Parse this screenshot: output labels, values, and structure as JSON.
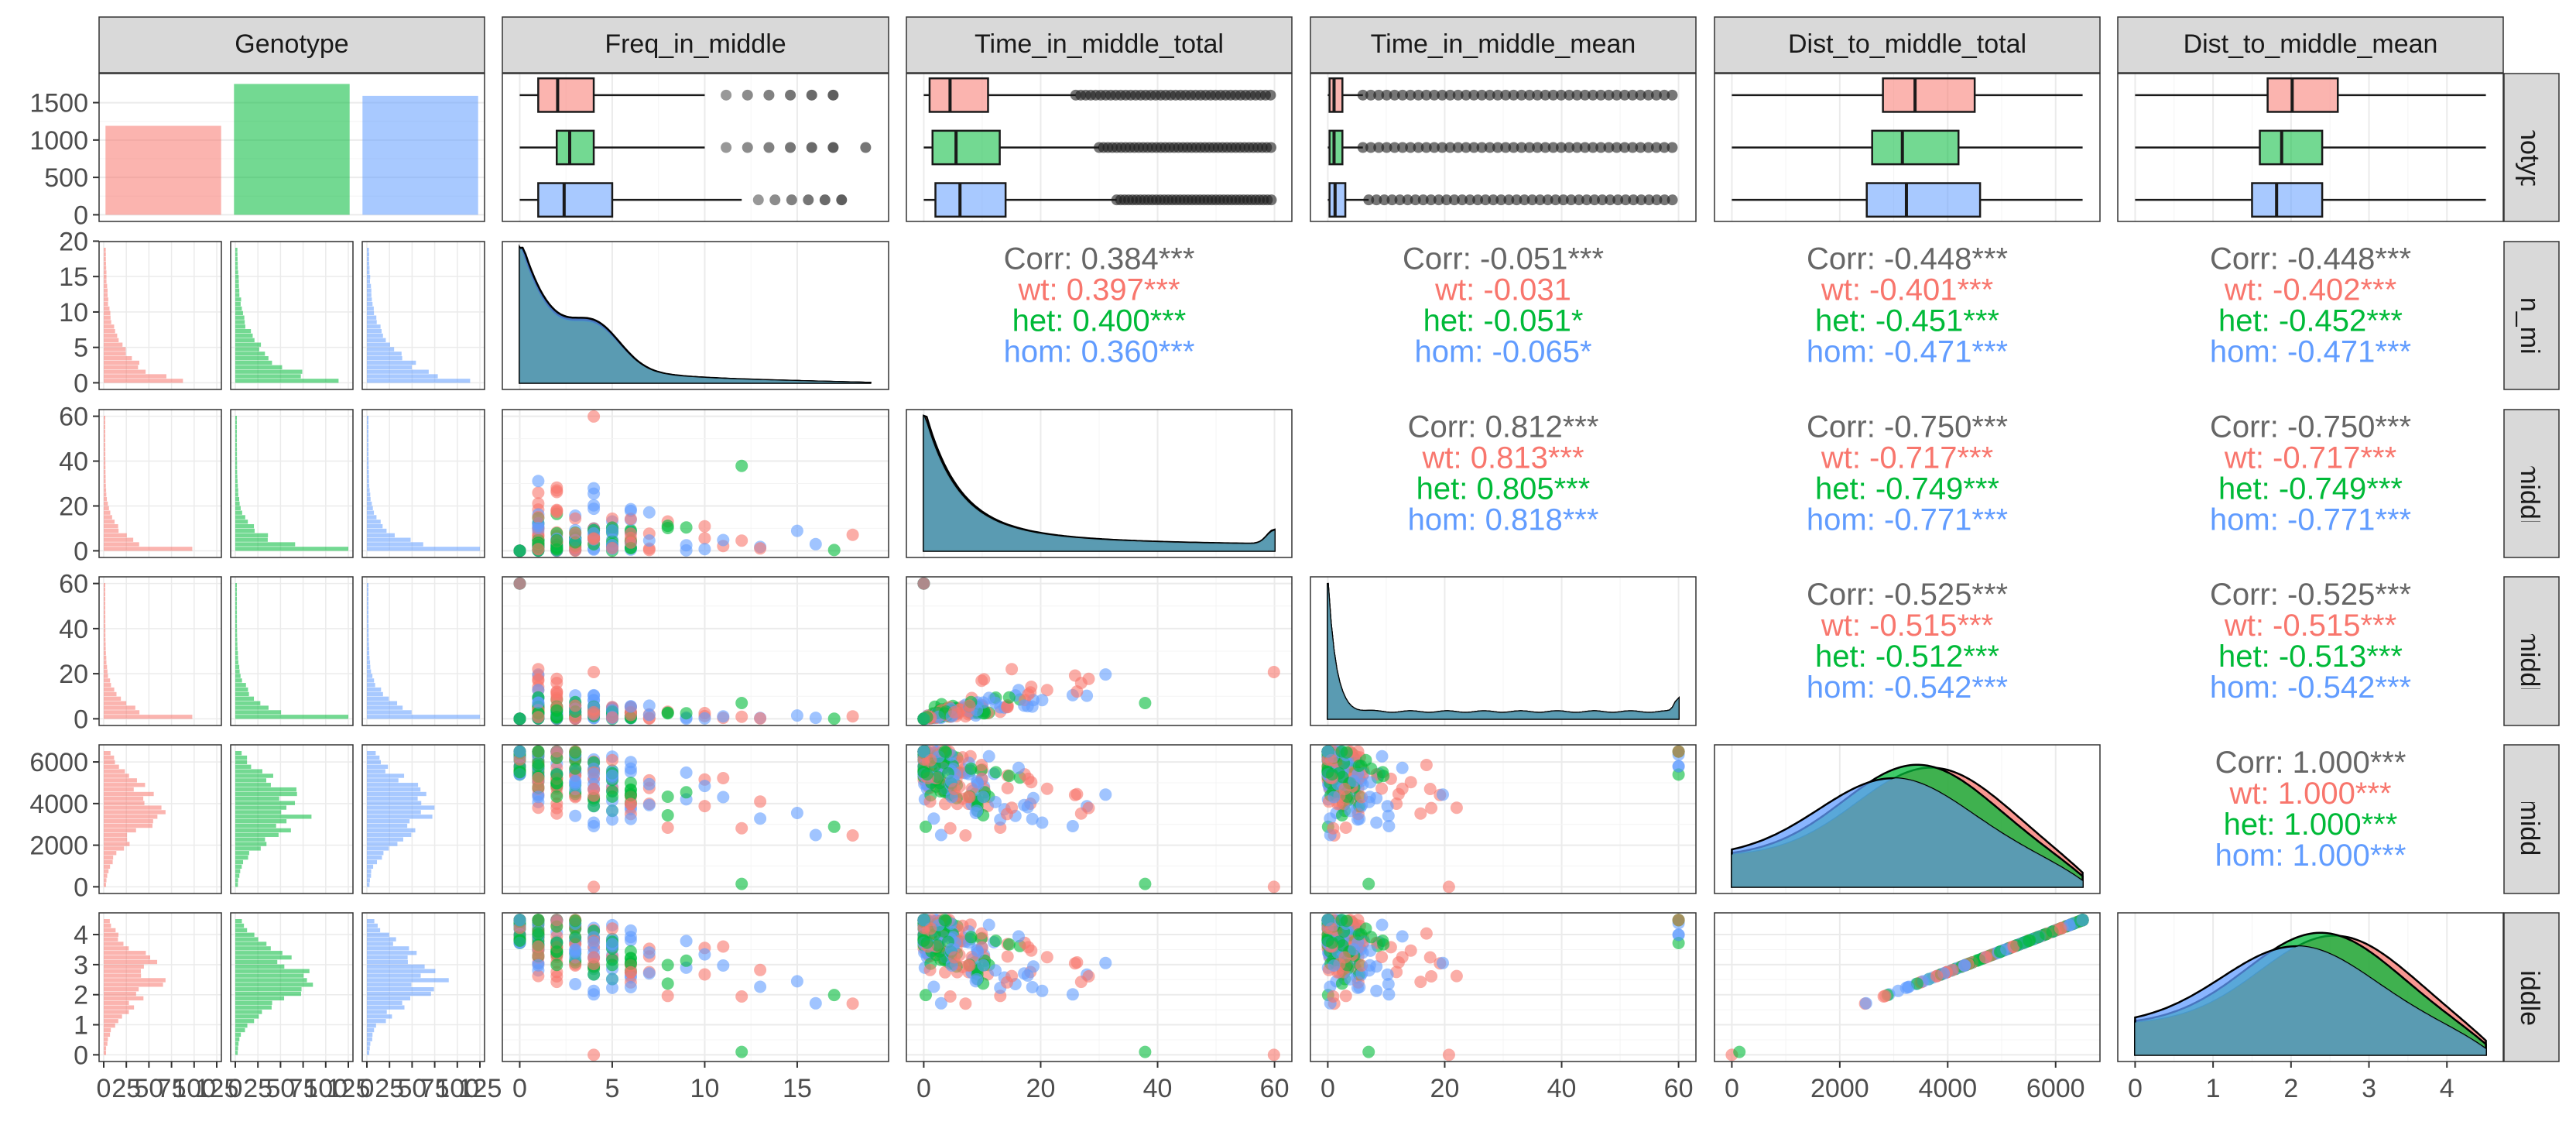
{
  "colors": {
    "wt": "#F8766D",
    "het": "#00BA38",
    "hom": "#619CFF",
    "overall": "#666666",
    "strip_bg": "#D9D9D9",
    "density_fill": "#5B9BB0"
  },
  "columns": [
    "Genotype",
    "Freq_in_middle",
    "Time_in_middle_total",
    "Time_in_middle_mean",
    "Dist_to_middle_total",
    "Dist_to_middle_mean"
  ],
  "rows": [
    "Genotype",
    "eq_in_midd",
    "_in_middle_",
    "_in_middle_",
    "_to_middle_",
    "to_middle_m"
  ],
  "chart_data": {
    "type": "scatter",
    "plot_kind": "pairs plot matrix",
    "groups": [
      "wt",
      "het",
      "hom"
    ],
    "genotype_counts": {
      "categories": [
        "wt",
        "het",
        "hom"
      ],
      "values": [
        1190,
        1750,
        1590
      ],
      "ylim": [
        0,
        1800
      ]
    },
    "y_ticks": {
      "Genotype": [
        0,
        500,
        1000,
        1500
      ],
      "Freq_in_middle": [
        0,
        5,
        10,
        15,
        20
      ],
      "Time_in_middle_total": [
        0,
        20,
        40,
        60
      ],
      "Time_in_middle_mean": [
        0,
        20,
        40,
        60
      ],
      "Dist_to_middle_total": [
        0,
        2000,
        4000,
        6000
      ],
      "Dist_to_middle_mean": [
        0,
        1,
        2,
        3,
        4
      ]
    },
    "x_ticks": {
      "Genotype": [
        "0",
        "25",
        "50",
        "75",
        "100",
        "125"
      ],
      "Freq_in_middle": [
        0,
        5,
        10,
        15
      ],
      "Time_in_middle_total": [
        0,
        20,
        40,
        60
      ],
      "Time_in_middle_mean": [
        0,
        20,
        40,
        60
      ],
      "Dist_to_middle_total": [
        0,
        2000,
        4000,
        6000
      ],
      "Dist_to_middle_mean": [
        0,
        1,
        2,
        3,
        4
      ]
    },
    "ranges": {
      "Freq_in_middle": [
        0,
        19
      ],
      "Time_in_middle_total": [
        0,
        60
      ],
      "Time_in_middle_mean": [
        0,
        60
      ],
      "Dist_to_middle_total": [
        0,
        6500
      ],
      "Dist_to_middle_mean": [
        0,
        4.5
      ]
    },
    "boxplots": {
      "Freq_in_middle": {
        "wt": [
          0,
          1,
          4,
          10
        ],
        "het": [
          0,
          2,
          4,
          10
        ],
        "hom": [
          0,
          1,
          5,
          12
        ]
      },
      "Time_in_middle_total": {
        "wt": [
          0,
          1,
          11,
          26
        ],
        "het": [
          0,
          1.5,
          13,
          30
        ],
        "hom": [
          0,
          2,
          14,
          33
        ]
      },
      "Time_in_middle_mean": {
        "wt": [
          0,
          0.3,
          2.5,
          6
        ],
        "het": [
          0,
          0.3,
          2.5,
          6
        ],
        "hom": [
          0,
          0.3,
          3,
          7
        ]
      },
      "Dist_to_middle_total": {
        "wt": [
          0,
          2800,
          4500,
          6500
        ],
        "het": [
          0,
          2600,
          4200,
          6500
        ],
        "hom": [
          0,
          2500,
          4600,
          6500
        ]
      },
      "Dist_to_middle_mean": {
        "wt": [
          0,
          1.7,
          2.6,
          4.5
        ],
        "het": [
          0,
          1.6,
          2.4,
          4.5
        ],
        "hom": [
          0,
          1.5,
          2.4,
          4.5
        ]
      }
    },
    "correlations": [
      {
        "row": 1,
        "col": 2,
        "lines": [
          "Corr: 0.384***",
          "wt: 0.397***",
          "het: 0.400***",
          "hom: 0.360***"
        ]
      },
      {
        "row": 1,
        "col": 3,
        "lines": [
          "Corr: -0.051***",
          "wt: -0.031",
          "het: -0.051*",
          "hom: -0.065*"
        ]
      },
      {
        "row": 1,
        "col": 4,
        "lines": [
          "Corr: -0.448***",
          "wt: -0.401***",
          "het: -0.451***",
          "hom: -0.471***"
        ]
      },
      {
        "row": 1,
        "col": 5,
        "lines": [
          "Corr: -0.448***",
          "wt: -0.402***",
          "het: -0.452***",
          "hom: -0.471***"
        ]
      },
      {
        "row": 2,
        "col": 3,
        "lines": [
          "Corr: 0.812***",
          "wt: 0.813***",
          "het: 0.805***",
          "hom: 0.818***"
        ]
      },
      {
        "row": 2,
        "col": 4,
        "lines": [
          "Corr: -0.750***",
          "wt: -0.717***",
          "het: -0.749***",
          "hom: -0.771***"
        ]
      },
      {
        "row": 2,
        "col": 5,
        "lines": [
          "Corr: -0.750***",
          "wt: -0.717***",
          "het: -0.749***",
          "hom: -0.771***"
        ]
      },
      {
        "row": 3,
        "col": 4,
        "lines": [
          "Corr: -0.525***",
          "wt: -0.515***",
          "het: -0.512***",
          "hom: -0.542***"
        ]
      },
      {
        "row": 3,
        "col": 5,
        "lines": [
          "Corr: -0.525***",
          "wt: -0.515***",
          "het: -0.513***",
          "hom: -0.542***"
        ]
      },
      {
        "row": 4,
        "col": 5,
        "lines": [
          "Corr: 1.000***",
          "wt: 1.000***",
          "het: 1.000***",
          "hom: 1.000***"
        ]
      }
    ],
    "grid": true,
    "legend": "none"
  }
}
